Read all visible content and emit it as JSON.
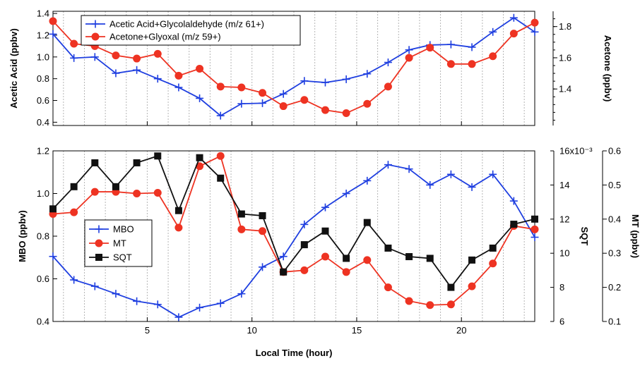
{
  "chart_data": [
    {
      "type": "line",
      "panel": "top",
      "x": [
        0.5,
        1.5,
        2.5,
        3.5,
        4.5,
        5.5,
        6.5,
        7.5,
        8.5,
        9.5,
        10.5,
        11.5,
        12.5,
        13.5,
        14.5,
        15.5,
        16.5,
        17.5,
        18.5,
        19.5,
        20.5,
        21.5,
        22.5,
        23.5
      ],
      "xlim": [
        0.5,
        23.5
      ],
      "xlabel": "Local Time (hour)",
      "xticks": [
        5,
        10,
        15,
        20
      ],
      "grid": "vertical dashed lines at each hour",
      "legend_position": "top-left",
      "series": [
        {
          "name": "Acetic Acid+Glycolaldehyde (m/z 61+)",
          "axis": "left",
          "color": "#1f3fe0",
          "marker": "plus",
          "values": [
            1.21,
            0.99,
            1.0,
            0.85,
            0.88,
            0.8,
            0.72,
            0.62,
            0.46,
            0.57,
            0.575,
            0.66,
            0.78,
            0.765,
            0.795,
            0.845,
            0.95,
            1.065,
            1.11,
            1.115,
            1.09,
            1.23,
            1.36,
            1.23
          ]
        },
        {
          "name": "Acetone+Glyoxal (m/z 59+)",
          "axis": "right",
          "color": "#ee3322",
          "marker": "circle",
          "values": [
            1.835,
            1.69,
            1.675,
            1.615,
            1.595,
            1.625,
            1.485,
            1.53,
            1.415,
            1.41,
            1.375,
            1.29,
            1.33,
            1.265,
            1.245,
            1.305,
            1.415,
            1.6,
            1.665,
            1.56,
            1.56,
            1.61,
            1.755,
            1.825
          ]
        }
      ],
      "left_axis": {
        "label": "Acetic Acid (ppbv)",
        "ylim": [
          0.37,
          1.42
        ],
        "ticks": [
          "0.4",
          "0.6",
          "0.8",
          "1.0",
          "1.2",
          "1.4"
        ]
      },
      "right_axis": {
        "label": "Acetone (ppbv)",
        "ylim": [
          1.166,
          1.898
        ],
        "ticks": [
          "1.4",
          "1.6",
          "1.8"
        ]
      }
    },
    {
      "type": "line",
      "panel": "bottom",
      "x": [
        0.5,
        1.5,
        2.5,
        3.5,
        4.5,
        5.5,
        6.5,
        7.5,
        8.5,
        9.5,
        10.5,
        11.5,
        12.5,
        13.5,
        14.5,
        15.5,
        16.5,
        17.5,
        18.5,
        19.5,
        20.5,
        21.5,
        22.5,
        23.5
      ],
      "xlim": [
        0.5,
        23.5
      ],
      "xlabel": "Local Time (hour)",
      "xticks": [
        "5",
        "10",
        "15",
        "20"
      ],
      "legend_position": "center-left",
      "series": [
        {
          "name": "MBO",
          "axis": "left",
          "color": "#1f3fe0",
          "marker": "plus",
          "values": [
            0.705,
            0.595,
            0.565,
            0.53,
            0.495,
            0.48,
            0.42,
            0.465,
            0.485,
            0.53,
            0.655,
            0.705,
            0.855,
            0.935,
            1.0,
            1.06,
            1.135,
            1.115,
            1.04,
            1.09,
            1.03,
            1.09,
            0.965,
            0.795
          ]
        },
        {
          "name": "MT",
          "axis": "right-inner",
          "color": "#ee3322",
          "marker": "circle",
          "values": [
            0.415,
            0.42,
            0.48,
            0.48,
            0.475,
            0.477,
            0.375,
            0.555,
            0.585,
            0.37,
            0.365,
            0.245,
            0.25,
            0.29,
            0.245,
            0.28,
            0.2,
            0.16,
            0.148,
            0.15,
            0.203,
            0.27,
            0.38,
            0.37
          ]
        },
        {
          "name": "SQT",
          "axis": "right-outer",
          "color": "#111111",
          "marker": "square",
          "values": [
            12.6,
            13.9,
            15.3,
            13.9,
            15.3,
            15.7,
            12.5,
            15.6,
            14.4,
            12.3,
            12.2,
            8.9,
            10.5,
            11.3,
            9.7,
            11.8,
            10.3,
            9.8,
            9.7,
            8.0,
            9.6,
            10.3,
            11.7,
            12.0
          ]
        }
      ],
      "left_axis": {
        "label": "MBO (ppbv)",
        "ylim": [
          0.4,
          1.2
        ],
        "ticks": [
          "0.4",
          "0.6",
          "0.8",
          "1.0",
          "1.2"
        ]
      },
      "right_inner_axis": {
        "label": "SQT",
        "ylim": [
          6,
          16
        ],
        "ticks": [
          "6",
          "8",
          "10",
          "12",
          "14",
          "16x10⁻³"
        ]
      },
      "right_outer_axis": {
        "label": "MT (ppbv)",
        "ylim": [
          0.1,
          0.6
        ],
        "ticks": [
          "0.1",
          "0.2",
          "0.3",
          "0.4",
          "0.5",
          "0.6"
        ]
      }
    }
  ]
}
